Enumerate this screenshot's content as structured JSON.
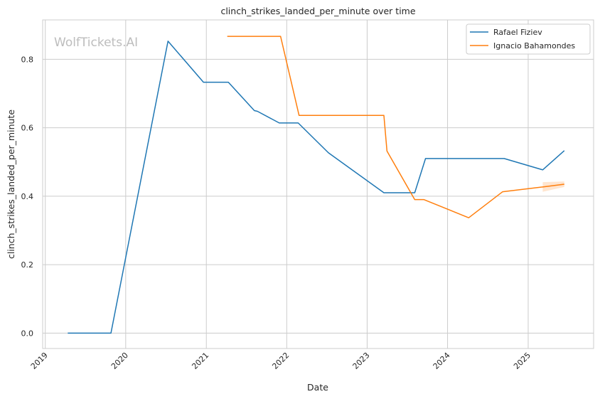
{
  "chart_data": {
    "type": "line",
    "title": "clinch_strikes_landed_per_minute over time",
    "xlabel": "Date",
    "ylabel": "clinch_strikes_landed_per_minute",
    "watermark": "WolfTickets.AI",
    "xlim": [
      "2018-12-20",
      "2025-10-25"
    ],
    "ylim": [
      -0.045,
      0.915
    ],
    "x_ticks": [
      "2019",
      "2020",
      "2021",
      "2022",
      "2023",
      "2024",
      "2025"
    ],
    "y_ticks": [
      "0.0",
      "0.2",
      "0.4",
      "0.6",
      "0.8"
    ],
    "y_tick_values": [
      0.0,
      0.2,
      0.4,
      0.6,
      0.8
    ],
    "grid": true,
    "legend_position": "top-right",
    "series": [
      {
        "name": "Rafael Fiziev",
        "color": "#1f77b4",
        "points": [
          [
            "2019-04-13",
            0.0
          ],
          [
            "2019-10-26",
            0.0
          ],
          [
            "2020-07-11",
            0.853
          ],
          [
            "2020-12-19",
            0.733
          ],
          [
            "2021-04-11",
            0.733
          ],
          [
            "2021-08-07",
            0.65
          ],
          [
            "2021-08-21",
            0.648
          ],
          [
            "2021-11-28",
            0.614
          ],
          [
            "2022-02-22",
            0.614
          ],
          [
            "2022-07-09",
            0.527
          ],
          [
            "2023-03-18",
            0.41
          ],
          [
            "2023-08-05",
            0.41
          ],
          [
            "2023-09-23",
            0.51
          ],
          [
            "2024-09-14",
            0.51
          ],
          [
            "2025-03-08",
            0.477
          ],
          [
            "2025-06-14",
            0.533
          ]
        ]
      },
      {
        "name": "Ignacio Bahamondes",
        "color": "#ff7f0e",
        "points": [
          [
            "2021-04-06",
            0.867
          ],
          [
            "2021-12-04",
            0.867
          ],
          [
            "2022-02-26",
            0.636
          ],
          [
            "2023-03-18",
            0.636
          ],
          [
            "2023-04-01",
            0.532
          ],
          [
            "2023-08-05",
            0.39
          ],
          [
            "2023-09-16",
            0.39
          ],
          [
            "2024-04-06",
            0.337
          ],
          [
            "2024-09-07",
            0.413
          ],
          [
            "2025-03-08",
            0.427
          ],
          [
            "2025-06-14",
            0.435
          ]
        ],
        "band": {
          "x": [
            "2025-03-08",
            "2025-06-14"
          ],
          "lower": [
            0.413,
            0.427
          ],
          "upper": [
            0.441,
            0.443
          ]
        }
      }
    ]
  }
}
